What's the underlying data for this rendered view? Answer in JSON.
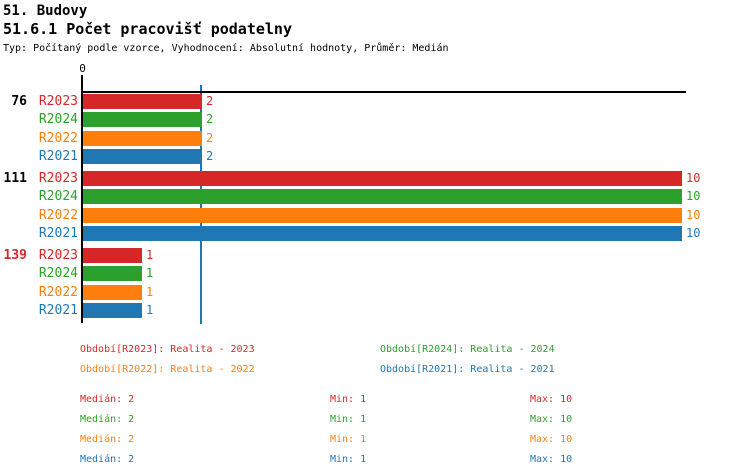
{
  "header": {
    "title1": "51. Budovy",
    "title2": "51.6.1 Počet pracovišť podatelny",
    "meta": "Typ: Počítaný podle vzorce, Vyhodnocení: Absolutní hodnoty, Průměr: Medián"
  },
  "colors": {
    "red": "#d62728",
    "green": "#2ca02c",
    "orange": "#ff7f0e",
    "blue": "#1f77b4",
    "axis": "#000000",
    "median_line": "#1f77b4"
  },
  "chart_data": {
    "type": "bar",
    "orientation": "horizontal",
    "title": "51.6.1 Počet pracovišť podatelny",
    "x_axis": {
      "origin_tick_label": "0",
      "min": 0,
      "max_shown": 10,
      "gridlines": false
    },
    "median_line_value": 2,
    "series": [
      "R2023",
      "R2024",
      "R2022",
      "R2021"
    ],
    "series_colors": [
      "#d62728",
      "#2ca02c",
      "#ff7f0e",
      "#1f77b4"
    ],
    "groups": [
      "76",
      "111",
      "139"
    ],
    "group_label_colors": [
      "#000000",
      "#000000",
      "#d62728"
    ],
    "values": [
      [
        2,
        2,
        2,
        2
      ],
      [
        10,
        10,
        10,
        10
      ],
      [
        1,
        1,
        1,
        1
      ]
    ],
    "value_labels": [
      [
        "2",
        "2",
        "2",
        "2"
      ],
      [
        "10",
        "10",
        "10",
        "10"
      ],
      [
        "1",
        "1",
        "1",
        "1"
      ]
    ]
  },
  "legend": {
    "items": [
      {
        "label": "Období[R2023]: Realita - 2023",
        "color": "#d62728",
        "row": 0,
        "col": 0
      },
      {
        "label": "Období[R2024]: Realita - 2024",
        "color": "#2ca02c",
        "row": 0,
        "col": 1
      },
      {
        "label": "Období[R2022]: Realita - 2022",
        "color": "#ff7f0e",
        "row": 1,
        "col": 0
      },
      {
        "label": "Období[R2021]: Realita - 2021",
        "color": "#1f77b4",
        "row": 1,
        "col": 1
      }
    ]
  },
  "stats": {
    "rows": [
      {
        "color": "#d62728",
        "median": "Medián: 2",
        "min": "Min: 1",
        "max": "Max: 10"
      },
      {
        "color": "#2ca02c",
        "median": "Medián: 2",
        "min": "Min: 1",
        "max": "Max: 10"
      },
      {
        "color": "#ff7f0e",
        "median": "Medián: 2",
        "min": "Min: 1",
        "max": "Max: 10"
      },
      {
        "color": "#1f77b4",
        "median": "Medián: 2",
        "min": "Min: 1",
        "max": "Max: 10"
      }
    ]
  }
}
